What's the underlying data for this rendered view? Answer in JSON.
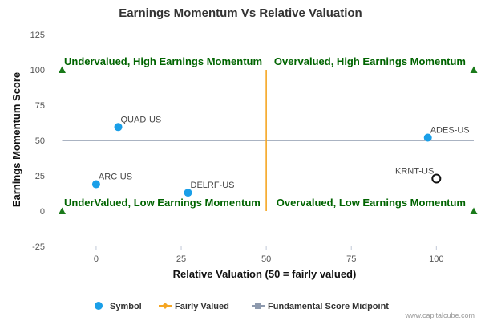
{
  "chart_data": {
    "type": "scatter",
    "title": "Earnings Momentum Vs Relative Valuation",
    "xlabel": "Relative Valuation (50 = fairly valued)",
    "ylabel": "Earnings Momentum Score",
    "xlim": [
      -12,
      111
    ],
    "ylim": [
      -25,
      125
    ],
    "xticks": [
      0,
      25,
      50,
      75,
      100
    ],
    "yticks": [
      -25,
      0,
      25,
      50,
      75,
      100,
      125
    ],
    "grid": false,
    "legend_position": "bottom",
    "points": [
      {
        "label": "QUAD-US",
        "x": 6.5,
        "y": 59.5,
        "style": "filled"
      },
      {
        "label": "ADES-US",
        "x": 97.5,
        "y": 52,
        "style": "filled"
      },
      {
        "label": "ARC-US",
        "x": 0,
        "y": 19,
        "style": "filled"
      },
      {
        "label": "DELRF-US",
        "x": 27,
        "y": 13,
        "style": "filled"
      },
      {
        "label": "KRNT-US",
        "x": 100,
        "y": 23,
        "style": "hollow"
      }
    ],
    "fairly_value_x": 50,
    "midpoint_y": 50,
    "corner_markers": [
      {
        "x": -10,
        "y": 100
      },
      {
        "x": 111,
        "y": 100
      },
      {
        "x": -10,
        "y": 0
      },
      {
        "x": 111,
        "y": 0
      }
    ],
    "quadrant_labels": {
      "top_left": "Undervalued, High Earnings Momentum",
      "top_right": "Overvalued, High Earnings Momentum",
      "bottom_left": "UnderValued, Low Earnings Momentum",
      "bottom_right": "Overvalued, Low Earnings Momentum"
    },
    "legend": [
      {
        "name": "Symbol",
        "color": "#1a9fe8",
        "kind": "dot"
      },
      {
        "name": "Fairly Valued",
        "color": "#f5a623",
        "kind": "line-diamond"
      },
      {
        "name": "Fundamental Score Midpoint",
        "color": "#8e9aae",
        "kind": "line-square"
      }
    ],
    "colors": {
      "point": "#1a9fe8",
      "hollow_point": "#111111",
      "fair_line": "#f5a623",
      "midpoint_line": "#8e9aae",
      "quadrant_text": "#006400",
      "marker": "#1a7a1a"
    }
  },
  "credit": "www.capitalcube.com"
}
